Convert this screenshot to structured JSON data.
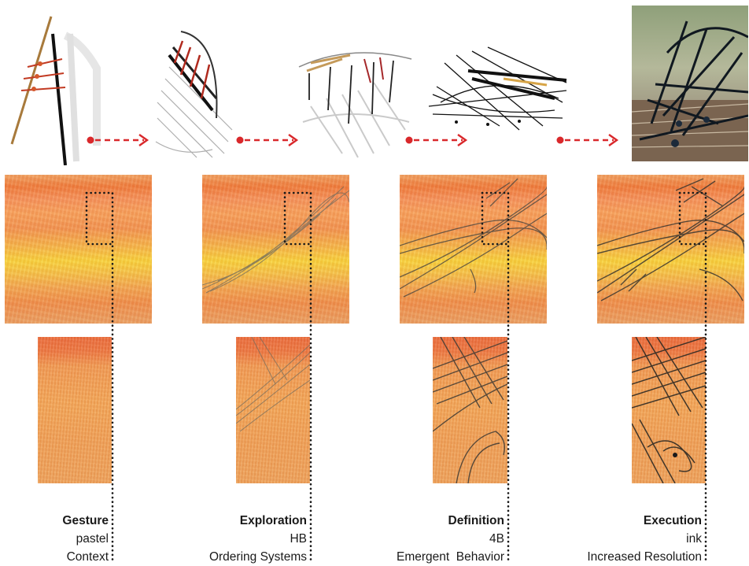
{
  "stages": [
    {
      "key": "gesture",
      "title": "Gesture",
      "medium": "pastel",
      "concept": "Context"
    },
    {
      "key": "exploration",
      "title": "Exploration",
      "medium": "HB",
      "concept": "Ordering Systems"
    },
    {
      "key": "definition",
      "title": "Definition",
      "medium": "4B",
      "concept": "Emergent  Behavior"
    },
    {
      "key": "execution",
      "title": "Execution",
      "medium": "ink",
      "concept": "Increased Resolution"
    }
  ],
  "colors": {
    "arrow": "#d9282b",
    "guide": "#1a1a1a"
  }
}
